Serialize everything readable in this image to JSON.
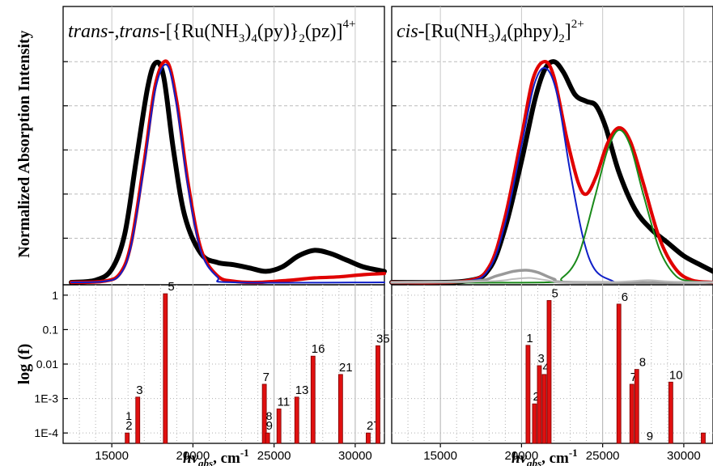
{
  "figure": {
    "ylabel_top": "Normalized Absorption Intensity",
    "ylabel_bottom": "log (f)",
    "xlabel_main": "hv",
    "xlabel_sub": "abs",
    "xlabel_tail": ", cm",
    "xlabel_sup": "-1"
  },
  "chart_data": [
    {
      "panel": "left-spectrum",
      "type": "line",
      "title_parts": {
        "lead": "trans-,trans-",
        "t1": "[{Ru(NH",
        "s1": "3",
        "t2": ")",
        "s2": "4",
        "t3": "(py)}",
        "s3": "2",
        "t4": "(pz)]",
        "sup": "4+"
      },
      "xlim": [
        12000,
        31800
      ],
      "ylim": [
        0,
        1.25
      ],
      "series": [
        {
          "color": "#000000",
          "points": [
            [
              12500,
              0.0
            ],
            [
              14000,
              0.01
            ],
            [
              15000,
              0.06
            ],
            [
              15800,
              0.22
            ],
            [
              16500,
              0.55
            ],
            [
              17200,
              0.88
            ],
            [
              17700,
              0.995
            ],
            [
              18200,
              0.93
            ],
            [
              18800,
              0.6
            ],
            [
              19500,
              0.3
            ],
            [
              20500,
              0.13
            ],
            [
              21500,
              0.09
            ],
            [
              22500,
              0.08
            ],
            [
              23500,
              0.065
            ],
            [
              24500,
              0.05
            ],
            [
              25500,
              0.07
            ],
            [
              26500,
              0.12
            ],
            [
              27500,
              0.145
            ],
            [
              28500,
              0.13
            ],
            [
              29500,
              0.1
            ],
            [
              30500,
              0.07
            ],
            [
              31800,
              0.05
            ]
          ]
        },
        {
          "color": "#e00000",
          "points": [
            [
              12500,
              0.0
            ],
            [
              14500,
              0.005
            ],
            [
              15500,
              0.04
            ],
            [
              16200,
              0.18
            ],
            [
              17000,
              0.55
            ],
            [
              17700,
              0.9
            ],
            [
              18400,
              1.0
            ],
            [
              19000,
              0.82
            ],
            [
              19700,
              0.45
            ],
            [
              20500,
              0.15
            ],
            [
              21500,
              0.03
            ],
            [
              22500,
              0.005
            ],
            [
              24000,
              0.0
            ],
            [
              26000,
              0.01
            ],
            [
              27500,
              0.02
            ],
            [
              29000,
              0.025
            ],
            [
              30500,
              0.035
            ],
            [
              31800,
              0.04
            ]
          ]
        },
        {
          "color": "#1020c8",
          "points": [
            [
              12500,
              0.0
            ],
            [
              14500,
              0.004
            ],
            [
              15500,
              0.035
            ],
            [
              16200,
              0.17
            ],
            [
              17000,
              0.53
            ],
            [
              17700,
              0.88
            ],
            [
              18400,
              0.985
            ],
            [
              19000,
              0.8
            ],
            [
              19700,
              0.43
            ],
            [
              20500,
              0.14
            ],
            [
              21500,
              0.025
            ],
            [
              22500,
              0.0
            ],
            [
              31800,
              0.0
            ]
          ]
        }
      ],
      "ticks": [
        "15000",
        "20000",
        "25000",
        "30000"
      ]
    },
    {
      "panel": "left-oscillator",
      "type": "bar",
      "scale": "log",
      "ylim": [
        5e-05,
        2
      ],
      "yticks": [
        "1",
        "0.1",
        "0.01",
        "1E-3",
        "1E-4"
      ],
      "xticks": [
        "15000",
        "20000",
        "25000",
        "30000"
      ],
      "bars": [
        {
          "x": 15950,
          "f": 0.0001,
          "label": "2",
          "extra": "1"
        },
        {
          "x": 16600,
          "f": 0.0011,
          "label": "3"
        },
        {
          "x": 18300,
          "f": 1.1,
          "label": "5"
        },
        {
          "x": 24400,
          "f": 0.0026,
          "label": "7"
        },
        {
          "x": 24600,
          "f": 0.0001,
          "label": "9",
          "extra": "8"
        },
        {
          "x": 25300,
          "f": 0.0005,
          "label": "11"
        },
        {
          "x": 26400,
          "f": 0.0011,
          "label": "13"
        },
        {
          "x": 27400,
          "f": 0.017,
          "label": "16"
        },
        {
          "x": 29100,
          "f": 0.005,
          "label": "21"
        },
        {
          "x": 30800,
          "f": 0.0001,
          "label": "27"
        },
        {
          "x": 31400,
          "f": 0.034,
          "label": "35"
        }
      ]
    },
    {
      "panel": "right-spectrum",
      "type": "line",
      "title_parts": {
        "lead": "cis-",
        "t1": "[Ru(NH",
        "s1": "3",
        "t2": ")",
        "s2": "4",
        "t3": "(phpy)",
        "s3": "2",
        "t4": "]",
        "sup": "2+"
      },
      "xlim": [
        12000,
        31800
      ],
      "ylim": [
        0,
        1.25
      ],
      "series": [
        {
          "color": "#000000",
          "points": [
            [
              12000,
              0.0
            ],
            [
              16500,
              0.005
            ],
            [
              18000,
              0.06
            ],
            [
              19000,
              0.25
            ],
            [
              20000,
              0.55
            ],
            [
              20800,
              0.82
            ],
            [
              21400,
              0.96
            ],
            [
              22000,
              1.0
            ],
            [
              22600,
              0.95
            ],
            [
              23300,
              0.85
            ],
            [
              24000,
              0.82
            ],
            [
              24600,
              0.8
            ],
            [
              25200,
              0.7
            ],
            [
              26000,
              0.5
            ],
            [
              27000,
              0.33
            ],
            [
              28000,
              0.24
            ],
            [
              29000,
              0.18
            ],
            [
              30000,
              0.12
            ],
            [
              31000,
              0.08
            ],
            [
              31800,
              0.05
            ]
          ]
        },
        {
          "color": "#e00000",
          "points": [
            [
              12000,
              0.0
            ],
            [
              16500,
              0.005
            ],
            [
              18000,
              0.07
            ],
            [
              19000,
              0.3
            ],
            [
              20000,
              0.66
            ],
            [
              20700,
              0.92
            ],
            [
              21400,
              1.0
            ],
            [
              22000,
              0.93
            ],
            [
              22800,
              0.65
            ],
            [
              23500,
              0.45
            ],
            [
              24000,
              0.4
            ],
            [
              24600,
              0.48
            ],
            [
              25300,
              0.63
            ],
            [
              26000,
              0.7
            ],
            [
              26700,
              0.64
            ],
            [
              27500,
              0.45
            ],
            [
              28500,
              0.2
            ],
            [
              29500,
              0.06
            ],
            [
              30500,
              0.01
            ],
            [
              31800,
              0.0
            ]
          ]
        },
        {
          "color": "#1020c8",
          "points": [
            [
              12000,
              0.0
            ],
            [
              16500,
              0.004
            ],
            [
              18000,
              0.06
            ],
            [
              19000,
              0.27
            ],
            [
              20000,
              0.62
            ],
            [
              20800,
              0.9
            ],
            [
              21500,
              0.97
            ],
            [
              22200,
              0.85
            ],
            [
              23000,
              0.5
            ],
            [
              23800,
              0.2
            ],
            [
              24500,
              0.06
            ],
            [
              25500,
              0.01
            ],
            [
              26500,
              0.0
            ],
            [
              31800,
              0.0
            ]
          ]
        },
        {
          "color": "#1a8a1a",
          "points": [
            [
              12000,
              0.0
            ],
            [
              21500,
              0.0
            ],
            [
              22500,
              0.02
            ],
            [
              23500,
              0.12
            ],
            [
              24500,
              0.38
            ],
            [
              25300,
              0.6
            ],
            [
              26000,
              0.69
            ],
            [
              26700,
              0.62
            ],
            [
              27500,
              0.4
            ],
            [
              28500,
              0.15
            ],
            [
              29500,
              0.03
            ],
            [
              30500,
              0.005
            ],
            [
              31800,
              0.0
            ]
          ]
        },
        {
          "color": "#999999",
          "points": [
            [
              12000,
              0.0
            ],
            [
              17000,
              0.005
            ],
            [
              18500,
              0.03
            ],
            [
              19500,
              0.05
            ],
            [
              20300,
              0.055
            ],
            [
              21000,
              0.045
            ],
            [
              22000,
              0.015
            ],
            [
              23000,
              0.0
            ],
            [
              31800,
              0.0
            ]
          ]
        },
        {
          "color": "#bbbbbb",
          "points": [
            [
              12000,
              0.0
            ],
            [
              18000,
              0.005
            ],
            [
              19500,
              0.015
            ],
            [
              20500,
              0.02
            ],
            [
              21500,
              0.01
            ],
            [
              22500,
              0.0
            ],
            [
              25000,
              0.0
            ],
            [
              26500,
              0.004
            ],
            [
              27800,
              0.01
            ],
            [
              29000,
              0.004
            ],
            [
              30500,
              0.0
            ],
            [
              31800,
              0.0
            ]
          ]
        }
      ],
      "ticks": [
        "15000",
        "20000",
        "25000",
        "30000"
      ]
    },
    {
      "panel": "right-oscillator",
      "type": "bar",
      "scale": "log",
      "ylim": [
        5e-05,
        2
      ],
      "xticks": [
        "15000",
        "20000",
        "25000",
        "30000"
      ],
      "bars": [
        {
          "x": 20400,
          "f": 0.035,
          "label": "1"
        },
        {
          "x": 20800,
          "f": 0.0007,
          "label": "2"
        },
        {
          "x": 21100,
          "f": 0.009,
          "label": "3"
        },
        {
          "x": 21400,
          "f": 0.005,
          "label": "4"
        },
        {
          "x": 21700,
          "f": 0.7,
          "label": "5"
        },
        {
          "x": 26000,
          "f": 0.55,
          "label": "6"
        },
        {
          "x": 26800,
          "f": 0.0026,
          "label": "7"
        },
        {
          "x": 27100,
          "f": 0.007,
          "label": "8"
        },
        {
          "x": 27500,
          "f": 0.0,
          "label": "9"
        },
        {
          "x": 29200,
          "f": 0.003,
          "label": "10"
        },
        {
          "x": 31200,
          "f": 0.0001,
          "label": ""
        }
      ]
    }
  ]
}
